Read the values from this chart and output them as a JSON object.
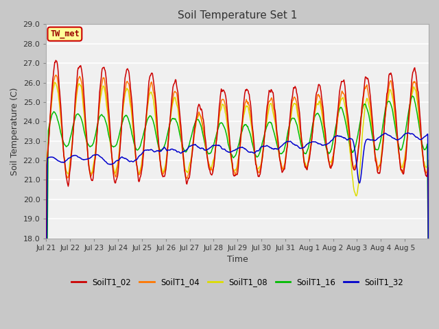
{
  "title": "Soil Temperature Set 1",
  "xlabel": "Time",
  "ylabel": "Soil Temperature (C)",
  "ylim": [
    18.0,
    29.0
  ],
  "yticks": [
    18.0,
    19.0,
    20.0,
    21.0,
    22.0,
    23.0,
    24.0,
    25.0,
    26.0,
    27.0,
    28.0,
    29.0
  ],
  "fig_bg_color": "#c8c8c8",
  "plot_bg_color": "#f0f0f0",
  "annotation": "TW_met",
  "legend": [
    "SoilT1_02",
    "SoilT1_04",
    "SoilT1_08",
    "SoilT1_16",
    "SoilT1_32"
  ],
  "colors": [
    "#cc0000",
    "#ff7700",
    "#dddd00",
    "#00bb00",
    "#0000cc"
  ],
  "line_width": 1.1,
  "xtick_labels": [
    "Jul 21",
    "Jul 22",
    "Jul 23",
    "Jul 24",
    "Jul 25",
    "Jul 26",
    "Jul 27",
    "Jul 28",
    "Jul 29",
    "Jul 30",
    "Jul 31",
    "Aug 1",
    "Aug 2",
    "Aug 3",
    "Aug 4",
    "Aug 5"
  ]
}
